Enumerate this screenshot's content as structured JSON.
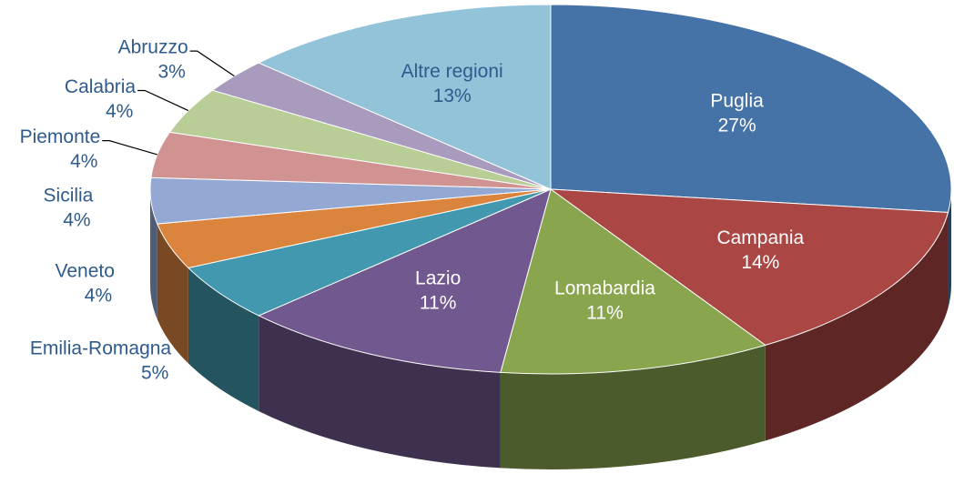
{
  "chart_data": {
    "type": "pie3d",
    "categories": [
      "Puglia",
      "Campania",
      "Lomabardia",
      "Lazio",
      "Emilia-Romagna",
      "Veneto",
      "Sicilia",
      "Piemonte",
      "Calabria",
      "Abruzzo",
      "Altre regioni"
    ],
    "values": [
      27,
      14,
      11,
      11,
      5,
      4,
      4,
      4,
      4,
      3,
      13
    ],
    "value_labels": [
      "27%",
      "14%",
      "11%",
      "11%",
      "5%",
      "4%",
      "4%",
      "4%",
      "4%",
      "3%",
      "13%"
    ],
    "colors": [
      "#4572a7",
      "#aa4643",
      "#89a54e",
      "#71588f",
      "#4198af",
      "#db843d",
      "#93a9d4",
      "#d19392",
      "#b9cd96",
      "#a99bbd",
      "#92c3d8"
    ]
  }
}
